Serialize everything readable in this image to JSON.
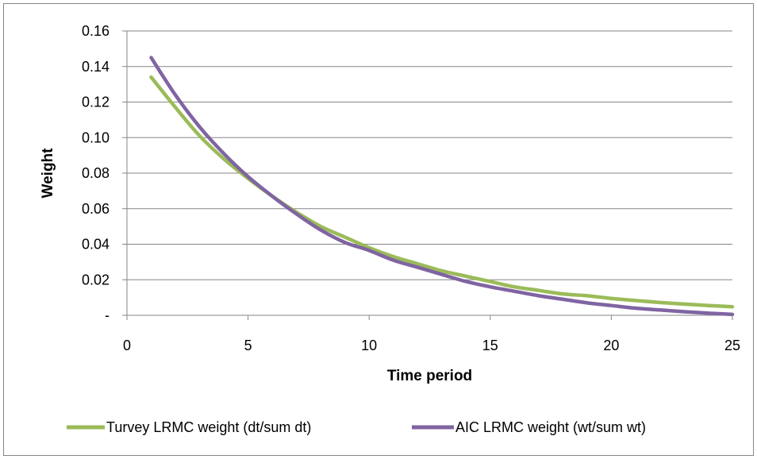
{
  "chart_data": {
    "type": "line",
    "title": "",
    "xlabel": "Time period",
    "ylabel": "Weight",
    "xlim": [
      0,
      25
    ],
    "ylim": [
      0,
      0.16
    ],
    "x_ticks": [
      "0",
      "5",
      "10",
      "15",
      "20",
      "25"
    ],
    "y_ticks": [
      "-",
      "0.02",
      "0.04",
      "0.06",
      "0.08",
      "0.10",
      "0.12",
      "0.14",
      "0.16"
    ],
    "grid": "horizontal",
    "legend_position": "bottom",
    "series": [
      {
        "name": "Turvey LRMC weight (dt/sum dt)",
        "color": "#9BBB59",
        "x": [
          1,
          2,
          3,
          4,
          5,
          6,
          7,
          8,
          9,
          10,
          11,
          12,
          13,
          14,
          15,
          16,
          17,
          18,
          19,
          20,
          21,
          22,
          23,
          24,
          25
        ],
        "values": [
          0.134,
          0.117,
          0.101,
          0.088,
          0.077,
          0.067,
          0.058,
          0.05,
          0.044,
          0.038,
          0.033,
          0.029,
          0.025,
          0.022,
          0.019,
          0.016,
          0.014,
          0.012,
          0.011,
          0.0095,
          0.0083,
          0.0072,
          0.0063,
          0.0055,
          0.0048
        ]
      },
      {
        "name": "AIC LRMC weight (wt/sum wt)",
        "color": "#8064A2",
        "x": [
          1,
          2,
          3,
          4,
          5,
          6,
          7,
          8,
          9,
          10,
          11,
          12,
          13,
          14,
          15,
          16,
          17,
          18,
          19,
          20,
          21,
          22,
          23,
          24,
          25
        ],
        "values": [
          0.145,
          0.124,
          0.106,
          0.091,
          0.078,
          0.067,
          0.057,
          0.048,
          0.041,
          0.0365,
          0.031,
          0.027,
          0.023,
          0.019,
          0.016,
          0.0135,
          0.011,
          0.009,
          0.007,
          0.0055,
          0.004,
          0.003,
          0.002,
          0.0012,
          0.0005
        ]
      }
    ]
  }
}
